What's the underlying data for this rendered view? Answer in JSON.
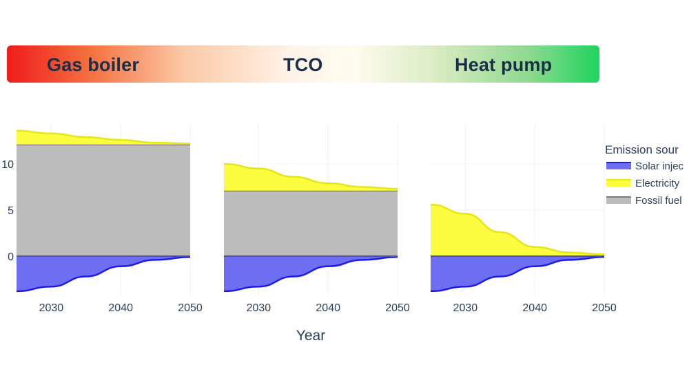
{
  "header": {
    "left_label": "Gas boiler",
    "center_label": "TCO",
    "right_label": "Heat pump"
  },
  "chart_data": {
    "type": "area",
    "xlabel": "Year",
    "ylabel": "",
    "xlim": [
      2025,
      2050
    ],
    "ylim": [
      -4,
      14
    ],
    "x_ticks": [
      2030,
      2040,
      2050
    ],
    "y_ticks": [
      0,
      5,
      10
    ],
    "grid": true,
    "legend": {
      "title": "Emission sour",
      "placement": "right",
      "entries": [
        "Solar injec",
        "Electricity",
        "Fossil fuel"
      ]
    },
    "x": [
      2025,
      2030,
      2035,
      2040,
      2045,
      2050
    ],
    "panels": [
      {
        "series": [
          {
            "name": "Solar injection",
            "color": "#6e6ef2",
            "line": "#1c1ce6",
            "values": [
              -3.8,
              -3.3,
              -2.2,
              -1.1,
              -0.4,
              -0.1
            ]
          },
          {
            "name": "Fossil fuel",
            "color": "#bcbcbc",
            "line": "#7a7a7a",
            "values": [
              12.1,
              12.1,
              12.1,
              12.1,
              12.1,
              12.1
            ]
          },
          {
            "name": "Electricity",
            "color": "#fbfb3f",
            "line": "#e5e51d",
            "values": [
              1.5,
              1.2,
              0.8,
              0.5,
              0.2,
              0.1
            ]
          }
        ]
      },
      {
        "series": [
          {
            "name": "Solar injection",
            "color": "#6e6ef2",
            "line": "#1c1ce6",
            "values": [
              -3.8,
              -3.3,
              -2.2,
              -1.1,
              -0.4,
              -0.1
            ]
          },
          {
            "name": "Fossil fuel",
            "color": "#bcbcbc",
            "line": "#7a7a7a",
            "values": [
              7.1,
              7.1,
              7.1,
              7.1,
              7.1,
              7.1
            ]
          },
          {
            "name": "Electricity",
            "color": "#fbfb3f",
            "line": "#e5e51d",
            "values": [
              2.9,
              2.4,
              1.5,
              0.8,
              0.4,
              0.2
            ]
          }
        ]
      },
      {
        "series": [
          {
            "name": "Solar injection",
            "color": "#6e6ef2",
            "line": "#1c1ce6",
            "values": [
              -3.8,
              -3.3,
              -2.2,
              -1.1,
              -0.4,
              -0.1
            ]
          },
          {
            "name": "Fossil fuel",
            "color": "#bcbcbc",
            "line": "#7a7a7a",
            "values": [
              0,
              0,
              0,
              0,
              0,
              0
            ]
          },
          {
            "name": "Electricity",
            "color": "#fbfb3f",
            "line": "#e5e51d",
            "values": [
              5.6,
              4.6,
              2.6,
              1.0,
              0.4,
              0.2
            ]
          }
        ]
      }
    ]
  }
}
